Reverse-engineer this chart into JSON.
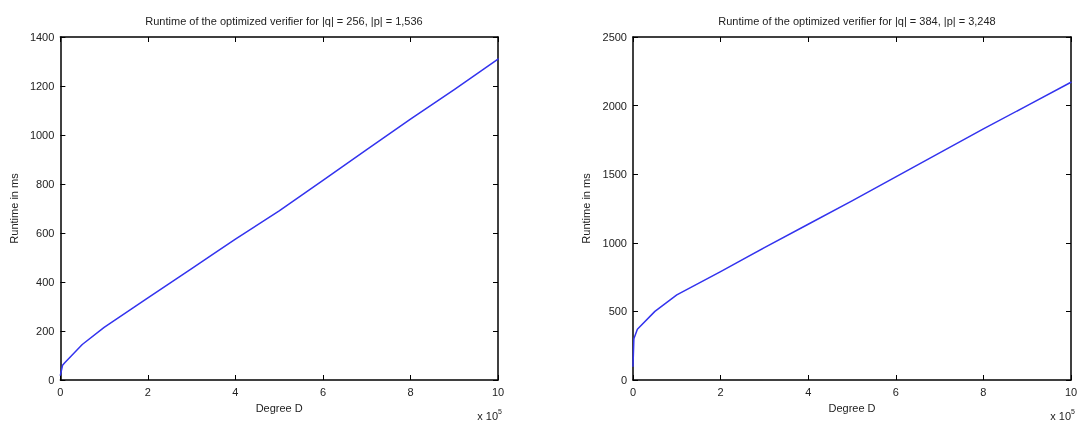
{
  "chart_data": [
    {
      "type": "line",
      "title": "Runtime of the optimized verifier for |q| = 256, |p| = 1,536",
      "xlabel": "Degree D",
      "ylabel": "Runtime in ms",
      "annotations": [
        "x 10$^{5}$"
      ],
      "series": [
        {
          "color": "#3333ee",
          "x": [
            0,
            0.05,
            0.1,
            0.5,
            1,
            2,
            3,
            4,
            5,
            6,
            7,
            8,
            9,
            10
          ],
          "values": [
            20,
            60,
            70,
            145,
            215,
            335,
            455,
            575,
            690,
            815,
            940,
            1065,
            1185,
            1310
          ]
        }
      ],
      "xlim": [
        0,
        10
      ],
      "xticks": [
        0,
        2,
        4,
        6,
        8,
        10
      ],
      "ylim": [
        0,
        1400
      ],
      "yticks": [
        0,
        200,
        400,
        600,
        800,
        1000,
        1200,
        1400
      ],
      "marker": "none",
      "line_style": "solid"
    },
    {
      "type": "line",
      "title": "Runtime of the optimized verifier for |q| = 384, |p| = 3,248",
      "xlabel": "Degree D",
      "ylabel": "Runtime in ms",
      "annotations": [
        "x 10$^{5}$"
      ],
      "series": [
        {
          "color": "#3333ee",
          "x": [
            0,
            0.02,
            0.1,
            0.5,
            1,
            2,
            3,
            4,
            5,
            6,
            7,
            8,
            9,
            10
          ],
          "values": [
            100,
            300,
            370,
            500,
            620,
            790,
            965,
            1135,
            1305,
            1480,
            1655,
            1830,
            2000,
            2170
          ]
        }
      ],
      "xlim": [
        0,
        10
      ],
      "xticks": [
        0,
        2,
        4,
        6,
        8,
        10
      ],
      "ylim": [
        0,
        2500
      ],
      "yticks": [
        0,
        500,
        1000,
        1500,
        2000,
        2500
      ],
      "marker": "none",
      "line_style": "solid"
    }
  ]
}
